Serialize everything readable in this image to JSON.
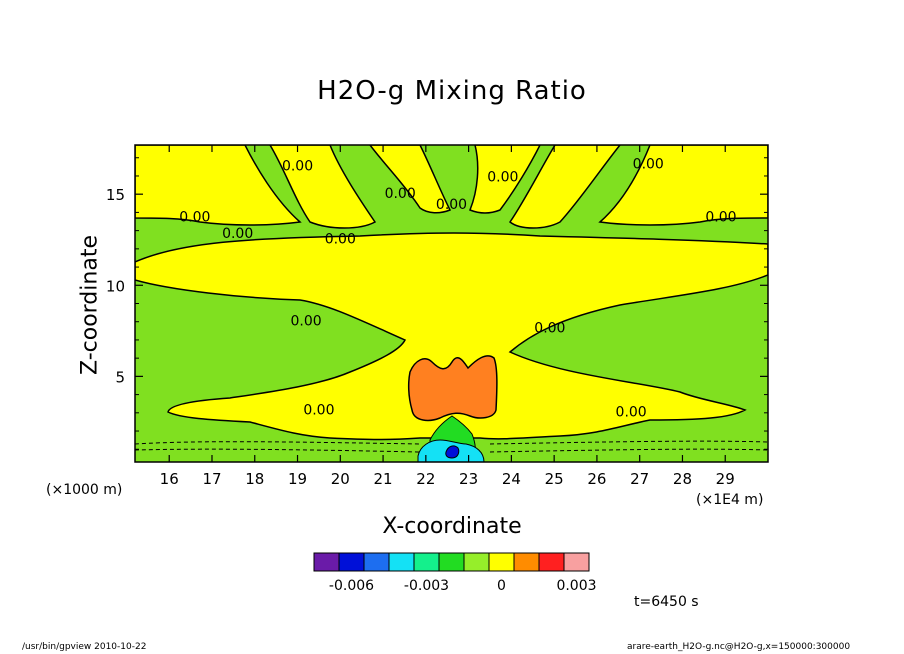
{
  "chart_data": {
    "type": "contour",
    "title": "H2O-g Mixing Ratio",
    "xlabel": "X-coordinate",
    "ylabel": "Z-coordinate",
    "x_unit_left": "(×1000 m)",
    "x_unit_right": "(×1E4 m)",
    "xlim": [
      15.2,
      30.0
    ],
    "ylim": [
      0.3,
      17.7
    ],
    "x_ticks": [
      16,
      17,
      18,
      19,
      20,
      21,
      22,
      23,
      24,
      25,
      26,
      27,
      28,
      29
    ],
    "y_ticks": [
      5,
      10,
      15
    ],
    "contour_labels": [
      "0.00",
      "0.00",
      "0.00",
      "0.00",
      "0.00",
      "0.00",
      "0.00",
      "0.00",
      "0.00",
      "0.00",
      "0.00",
      "0.00",
      "0.00"
    ],
    "colorbar": {
      "colors": [
        "#6a1ba8",
        "#0010d8",
        "#1d6ef0",
        "#14e1f5",
        "#14f08c",
        "#22dc22",
        "#96ee2a",
        "#ffff00",
        "#ff8c00",
        "#ff2020",
        "#f8a0a0"
      ],
      "labels": [
        "-0.006",
        "-0.003",
        "0",
        "0.003"
      ],
      "label_values": [
        -0.006,
        -0.003,
        0,
        0.003
      ],
      "min": -0.0075,
      "max": 0.0035
    },
    "grid": false,
    "legend": "colorbar-bottom"
  },
  "time_label": "t=6450 s",
  "footer": {
    "left": "/usr/bin/gpview   2010-10-22",
    "right": "arare-earth_H2O-g.nc@H2O-g,x=150000:300000"
  },
  "colors": {
    "green": "#80e020",
    "yellow": "#ffff00",
    "orange": "#ff8020",
    "bright_green": "#22dc22",
    "cyan": "#14e1f5",
    "blue": "#0010d8"
  }
}
